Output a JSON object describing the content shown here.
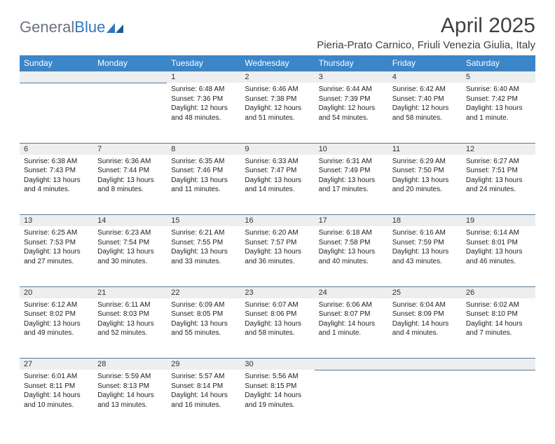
{
  "logo": {
    "textA": "General",
    "textB": "Blue"
  },
  "title": "April 2025",
  "location": "Pieria-Prato Carnico, Friuli Venezia Giulia, Italy",
  "colors": {
    "header_bg": "#3b86c8",
    "header_text": "#ffffff",
    "daynum_bg": "#eceef0",
    "rule": "#5b7a99"
  },
  "weekdays": [
    "Sunday",
    "Monday",
    "Tuesday",
    "Wednesday",
    "Thursday",
    "Friday",
    "Saturday"
  ],
  "weeks": [
    [
      null,
      null,
      {
        "n": "1",
        "sunrise": "6:48 AM",
        "sunset": "7:36 PM",
        "daylight": "12 hours and 48 minutes."
      },
      {
        "n": "2",
        "sunrise": "6:46 AM",
        "sunset": "7:38 PM",
        "daylight": "12 hours and 51 minutes."
      },
      {
        "n": "3",
        "sunrise": "6:44 AM",
        "sunset": "7:39 PM",
        "daylight": "12 hours and 54 minutes."
      },
      {
        "n": "4",
        "sunrise": "6:42 AM",
        "sunset": "7:40 PM",
        "daylight": "12 hours and 58 minutes."
      },
      {
        "n": "5",
        "sunrise": "6:40 AM",
        "sunset": "7:42 PM",
        "daylight": "13 hours and 1 minute."
      }
    ],
    [
      {
        "n": "6",
        "sunrise": "6:38 AM",
        "sunset": "7:43 PM",
        "daylight": "13 hours and 4 minutes."
      },
      {
        "n": "7",
        "sunrise": "6:36 AM",
        "sunset": "7:44 PM",
        "daylight": "13 hours and 8 minutes."
      },
      {
        "n": "8",
        "sunrise": "6:35 AM",
        "sunset": "7:46 PM",
        "daylight": "13 hours and 11 minutes."
      },
      {
        "n": "9",
        "sunrise": "6:33 AM",
        "sunset": "7:47 PM",
        "daylight": "13 hours and 14 minutes."
      },
      {
        "n": "10",
        "sunrise": "6:31 AM",
        "sunset": "7:49 PM",
        "daylight": "13 hours and 17 minutes."
      },
      {
        "n": "11",
        "sunrise": "6:29 AM",
        "sunset": "7:50 PM",
        "daylight": "13 hours and 20 minutes."
      },
      {
        "n": "12",
        "sunrise": "6:27 AM",
        "sunset": "7:51 PM",
        "daylight": "13 hours and 24 minutes."
      }
    ],
    [
      {
        "n": "13",
        "sunrise": "6:25 AM",
        "sunset": "7:53 PM",
        "daylight": "13 hours and 27 minutes."
      },
      {
        "n": "14",
        "sunrise": "6:23 AM",
        "sunset": "7:54 PM",
        "daylight": "13 hours and 30 minutes."
      },
      {
        "n": "15",
        "sunrise": "6:21 AM",
        "sunset": "7:55 PM",
        "daylight": "13 hours and 33 minutes."
      },
      {
        "n": "16",
        "sunrise": "6:20 AM",
        "sunset": "7:57 PM",
        "daylight": "13 hours and 36 minutes."
      },
      {
        "n": "17",
        "sunrise": "6:18 AM",
        "sunset": "7:58 PM",
        "daylight": "13 hours and 40 minutes."
      },
      {
        "n": "18",
        "sunrise": "6:16 AM",
        "sunset": "7:59 PM",
        "daylight": "13 hours and 43 minutes."
      },
      {
        "n": "19",
        "sunrise": "6:14 AM",
        "sunset": "8:01 PM",
        "daylight": "13 hours and 46 minutes."
      }
    ],
    [
      {
        "n": "20",
        "sunrise": "6:12 AM",
        "sunset": "8:02 PM",
        "daylight": "13 hours and 49 minutes."
      },
      {
        "n": "21",
        "sunrise": "6:11 AM",
        "sunset": "8:03 PM",
        "daylight": "13 hours and 52 minutes."
      },
      {
        "n": "22",
        "sunrise": "6:09 AM",
        "sunset": "8:05 PM",
        "daylight": "13 hours and 55 minutes."
      },
      {
        "n": "23",
        "sunrise": "6:07 AM",
        "sunset": "8:06 PM",
        "daylight": "13 hours and 58 minutes."
      },
      {
        "n": "24",
        "sunrise": "6:06 AM",
        "sunset": "8:07 PM",
        "daylight": "14 hours and 1 minute."
      },
      {
        "n": "25",
        "sunrise": "6:04 AM",
        "sunset": "8:09 PM",
        "daylight": "14 hours and 4 minutes."
      },
      {
        "n": "26",
        "sunrise": "6:02 AM",
        "sunset": "8:10 PM",
        "daylight": "14 hours and 7 minutes."
      }
    ],
    [
      {
        "n": "27",
        "sunrise": "6:01 AM",
        "sunset": "8:11 PM",
        "daylight": "14 hours and 10 minutes."
      },
      {
        "n": "28",
        "sunrise": "5:59 AM",
        "sunset": "8:13 PM",
        "daylight": "14 hours and 13 minutes."
      },
      {
        "n": "29",
        "sunrise": "5:57 AM",
        "sunset": "8:14 PM",
        "daylight": "14 hours and 16 minutes."
      },
      {
        "n": "30",
        "sunrise": "5:56 AM",
        "sunset": "8:15 PM",
        "daylight": "14 hours and 19 minutes."
      },
      null,
      null,
      null
    ]
  ]
}
